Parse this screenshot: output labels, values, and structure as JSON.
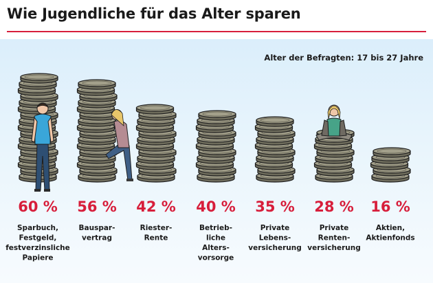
{
  "header": {
    "title": "Wie Jugendliche für das Alter sparen",
    "subtitle": "Alter der Befragten: 17 bis 27 Jahre"
  },
  "colors": {
    "accent": "#d71e3b",
    "coin_face": "#a3a08b",
    "coin_edge": "#6e6c5c",
    "background": "#dbeefb"
  },
  "chart_data": {
    "type": "bar",
    "title": "Wie Jugendliche für das Alter sparen",
    "subtitle": "Alter der Befragten: 17 bis 27 Jahre",
    "unit": "%",
    "ylim": [
      0,
      60
    ],
    "categories": [
      "Sparbuch,\nFestgeld,\nfestverzinsliche\nPapiere",
      "Bauspar-\nvertrag",
      "Riester-\nRente",
      "Betrieb-\nliche\nAlters-\nvorsorge",
      "Private\nLebens-\nversicherung",
      "Private\nRenten-\nversicherung",
      "Aktien,\nAktienfonds"
    ],
    "values": [
      60,
      56,
      42,
      40,
      35,
      28,
      16
    ],
    "value_labels": [
      "60 %",
      "56 %",
      "42 %",
      "40 %",
      "35 %",
      "28 %",
      "16 %"
    ],
    "figures": [
      "standing-man",
      "leaning-woman",
      null,
      null,
      null,
      "sitting-woman",
      null
    ]
  }
}
